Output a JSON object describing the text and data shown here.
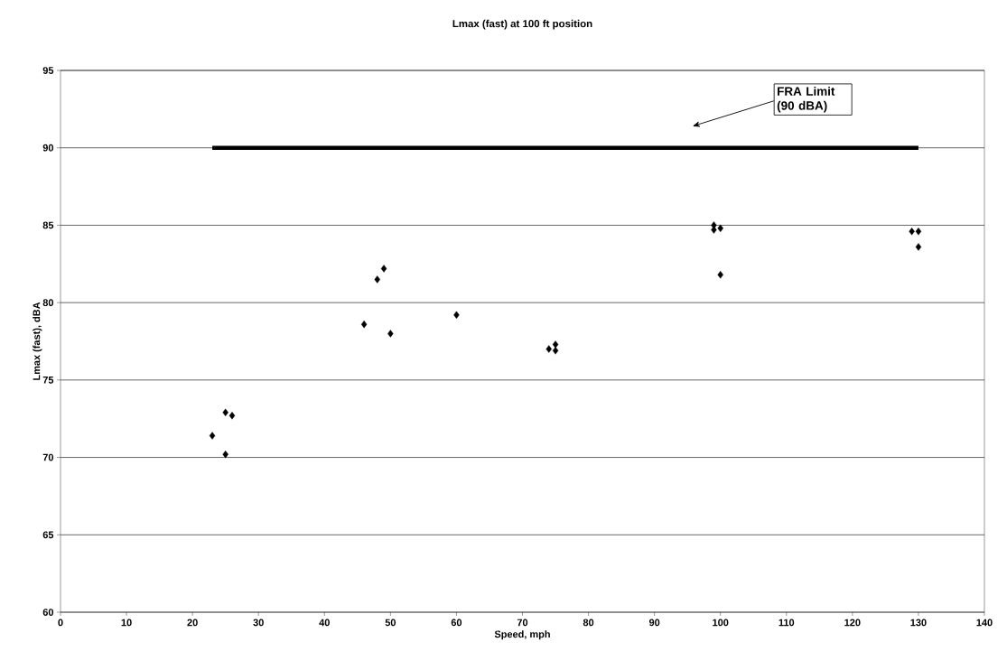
{
  "chart_data": {
    "type": "scatter",
    "title": "Lmax (fast) at 100 ft position",
    "xlabel": "Speed, mph",
    "ylabel": "Lmax (fast), dBA",
    "series": [
      {
        "color": "#000000",
        "marker": "diamond",
        "x": [
          23,
          25,
          26,
          25,
          46,
          48,
          49,
          50,
          60,
          74,
          75,
          75,
          99,
          99,
          100,
          100,
          129,
          130,
          130
        ],
        "values": [
          71.4,
          72.9,
          72.7,
          70.2,
          78.6,
          81.5,
          82.2,
          78.0,
          79.2,
          77.0,
          77.3,
          76.9,
          85.0,
          84.7,
          84.8,
          81.8,
          84.6,
          84.6,
          83.6
        ]
      },
      {
        "type": "line",
        "color": "#000000",
        "x": [
          23,
          130
        ],
        "values": [
          90,
          90
        ]
      }
    ],
    "annotations": [
      "FRA Limit (90 dBA)"
    ],
    "xlim": [
      0,
      140
    ],
    "ylim": [
      60,
      95
    ],
    "xticks": [
      0,
      10,
      20,
      30,
      40,
      50,
      60,
      70,
      80,
      90,
      100,
      110,
      120,
      130,
      140
    ],
    "yticks": [
      60,
      65,
      70,
      75,
      80,
      85,
      90,
      95
    ],
    "grid": "y"
  }
}
